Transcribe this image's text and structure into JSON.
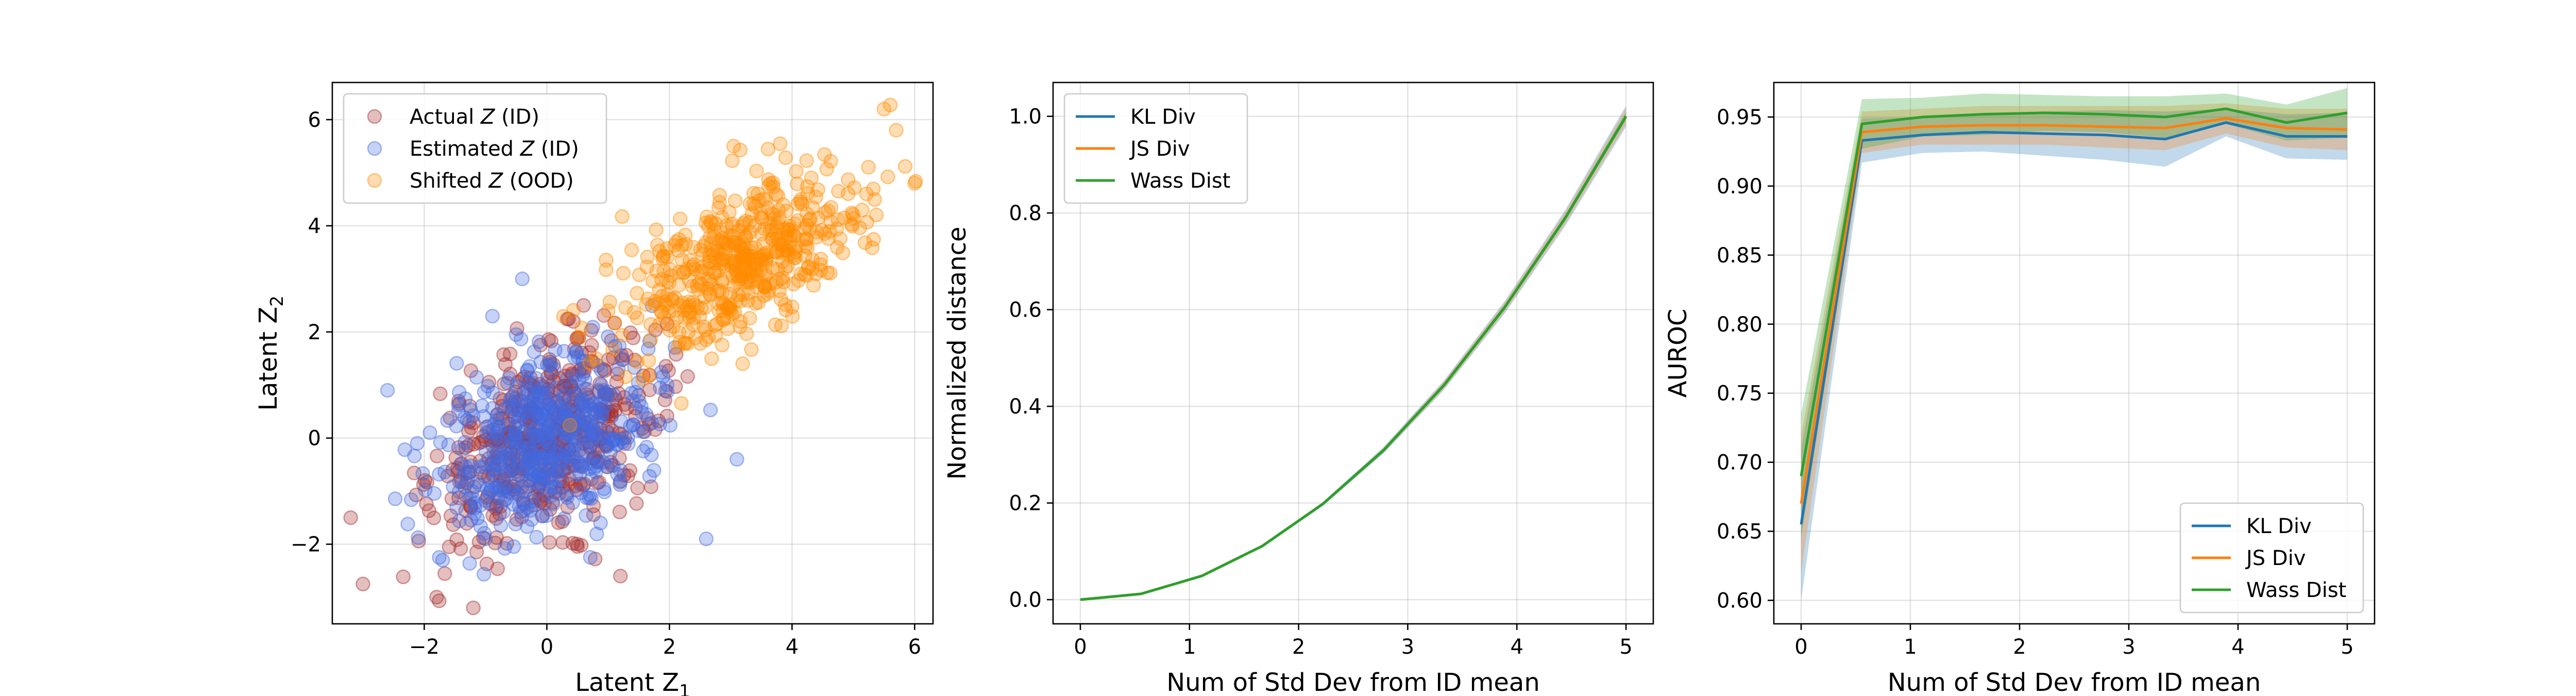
{
  "colors": {
    "actual": "#a52a2a",
    "estimated": "#4169e1",
    "shifted": "#ff8c00",
    "kl": "#1f77b4",
    "js": "#ff7f0e",
    "wass": "#2ca02c"
  },
  "chart_data": [
    {
      "type": "scatter",
      "title": "",
      "xlabel": "Latent Z",
      "xlabel_sub": "1",
      "ylabel": "Latent Z",
      "ylabel_sub": "2",
      "xlim": [
        -3.5,
        6.3
      ],
      "ylim": [
        -3.5,
        6.7
      ],
      "xticks": [
        -2,
        0,
        2,
        4,
        6
      ],
      "xtick_labels": [
        "−2",
        "0",
        "2",
        "4",
        "6"
      ],
      "yticks": [
        -2,
        0,
        2,
        4,
        6
      ],
      "ytick_labels": [
        "−2",
        "0",
        "2",
        "4",
        "6"
      ],
      "grid": true,
      "legend_position": "top-left",
      "series": [
        {
          "name_prefix": "Actual ",
          "name_var": "Z",
          "name_suffix": " (ID)",
          "color_key": "actual",
          "n_points": 500,
          "distribution": {
            "mean": [
              0,
              0
            ],
            "sd": [
              0.9,
              0.9
            ],
            "corr": 0.4
          },
          "extreme_points": [
            [
              -3.0,
              -2.75
            ],
            [
              -3.2,
              -1.5
            ],
            [
              -1.2,
              -3.2
            ],
            [
              1.2,
              -2.6
            ],
            [
              0.6,
              2.5
            ]
          ]
        },
        {
          "name_prefix": "Estimated ",
          "name_var": "Z",
          "name_suffix": " (ID)",
          "color_key": "estimated",
          "n_points": 500,
          "distribution": {
            "mean": [
              0,
              0
            ],
            "sd": [
              0.85,
              0.85
            ],
            "corr": 0.3
          },
          "extreme_points": [
            [
              -2.6,
              0.9
            ],
            [
              -0.4,
              3.0
            ],
            [
              2.6,
              -1.9
            ],
            [
              3.1,
              -0.4
            ],
            [
              -1.7,
              -2.3
            ]
          ]
        },
        {
          "name_prefix": "Shifted ",
          "name_var": "Z",
          "name_suffix": " (OOD)",
          "color_key": "shifted",
          "n_points": 500,
          "distribution": {
            "mean": [
              3.2,
              3.3
            ],
            "sd": [
              1.0,
              0.9
            ],
            "corr": 0.6
          },
          "extreme_points": [
            [
              5.5,
              6.2
            ],
            [
              5.7,
              5.8
            ],
            [
              6.0,
              4.8
            ],
            [
              0.8,
              1.5
            ],
            [
              1.0,
              2.4
            ]
          ]
        }
      ]
    },
    {
      "type": "line",
      "title": "",
      "xlabel": "Num of Std Dev from ID mean",
      "ylabel": "Normalized distance",
      "xlim": [
        -0.25,
        5.25
      ],
      "ylim": [
        -0.05,
        1.07
      ],
      "xticks": [
        0,
        1,
        2,
        3,
        4,
        5
      ],
      "xtick_labels": [
        "0",
        "1",
        "2",
        "3",
        "4",
        "5"
      ],
      "yticks": [
        0.0,
        0.2,
        0.4,
        0.6,
        0.8,
        1.0
      ],
      "ytick_labels": [
        "0.0",
        "0.2",
        "0.4",
        "0.6",
        "0.8",
        "1.0"
      ],
      "grid": true,
      "legend_position": "top-left",
      "x": [
        0,
        0.556,
        1.111,
        1.667,
        2.222,
        2.778,
        3.333,
        3.889,
        4.444,
        5.0
      ],
      "series": [
        {
          "name": "KL Div",
          "color_key": "kl",
          "values": [
            0.0,
            0.012,
            0.049,
            0.111,
            0.198,
            0.309,
            0.444,
            0.605,
            0.79,
            1.0
          ],
          "band": [
            0.0,
            0.0,
            0.0,
            0.002,
            0.004,
            0.007,
            0.01,
            0.013,
            0.017,
            0.022
          ]
        },
        {
          "name": "JS Div",
          "color_key": "js",
          "values": [
            0.0,
            0.012,
            0.049,
            0.111,
            0.198,
            0.309,
            0.444,
            0.605,
            0.79,
            1.0
          ],
          "band": [
            0.0,
            0.0,
            0.0,
            0.002,
            0.003,
            0.005,
            0.008,
            0.01,
            0.013,
            0.017
          ]
        },
        {
          "name": "Wass Dist",
          "color_key": "wass",
          "values": [
            0.0,
            0.012,
            0.049,
            0.111,
            0.198,
            0.309,
            0.444,
            0.605,
            0.79,
            1.0
          ],
          "band": [
            0.0,
            0.0,
            0.0,
            0.001,
            0.002,
            0.003,
            0.004,
            0.005,
            0.006,
            0.008
          ]
        }
      ]
    },
    {
      "type": "line",
      "title": "",
      "xlabel": "Num of Std Dev from ID mean",
      "ylabel": "AUROC",
      "xlim": [
        -0.25,
        5.25
      ],
      "ylim": [
        0.583,
        0.975
      ],
      "xticks": [
        0,
        1,
        2,
        3,
        4,
        5
      ],
      "xtick_labels": [
        "0",
        "1",
        "2",
        "3",
        "4",
        "5"
      ],
      "yticks": [
        0.6,
        0.65,
        0.7,
        0.75,
        0.8,
        0.85,
        0.9,
        0.95
      ],
      "ytick_labels": [
        "0.60",
        "0.65",
        "0.70",
        "0.75",
        "0.80",
        "0.85",
        "0.90",
        "0.95"
      ],
      "grid": true,
      "legend_position": "bottom-right",
      "x": [
        0,
        0.556,
        1.111,
        1.667,
        2.222,
        2.778,
        3.333,
        3.889,
        4.444,
        5.0
      ],
      "series": [
        {
          "name": "KL Div",
          "color_key": "kl",
          "values": [
            0.655,
            0.933,
            0.937,
            0.939,
            0.938,
            0.937,
            0.934,
            0.946,
            0.936,
            0.936
          ],
          "band": [
            0.055,
            0.016,
            0.013,
            0.014,
            0.016,
            0.018,
            0.02,
            0.01,
            0.016,
            0.017
          ]
        },
        {
          "name": "JS Div",
          "color_key": "js",
          "values": [
            0.67,
            0.939,
            0.943,
            0.944,
            0.944,
            0.943,
            0.942,
            0.949,
            0.942,
            0.941
          ],
          "band": [
            0.05,
            0.015,
            0.013,
            0.014,
            0.014,
            0.015,
            0.016,
            0.011,
            0.014,
            0.015
          ]
        },
        {
          "name": "Wass Dist",
          "color_key": "wass",
          "values": [
            0.69,
            0.945,
            0.95,
            0.952,
            0.953,
            0.952,
            0.95,
            0.956,
            0.946,
            0.953
          ],
          "band": [
            0.045,
            0.018,
            0.014,
            0.015,
            0.013,
            0.013,
            0.015,
            0.011,
            0.013,
            0.018
          ]
        }
      ]
    }
  ]
}
